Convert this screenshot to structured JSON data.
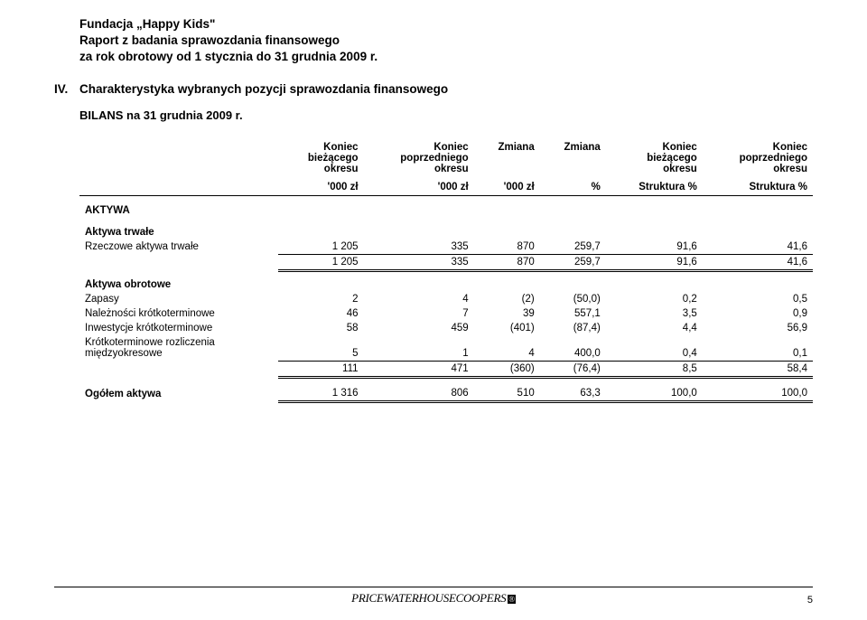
{
  "header": {
    "org": "Fundacja „Happy Kids\"",
    "line2": "Raport z badania sprawozdania finansowego",
    "line3": "za rok obrotowy od 1 stycznia do 31 grudnia 2009 r."
  },
  "section": {
    "roman": "IV.",
    "title": "Charakterystyka wybranych pozycji sprawozdania finansowego",
    "subhead": "BILANS na 31 grudnia 2009 r."
  },
  "table": {
    "col_headers": [
      "Koniec bieżącego okresu",
      "Koniec poprzedniego okresu",
      "Zmiana",
      "Zmiana",
      "Koniec bieżącego okresu",
      "Koniec poprzedniego okresu"
    ],
    "unit_headers": [
      "'000 zł",
      "'000 zł",
      "'000 zł",
      "%",
      "Struktura %",
      "Struktura %"
    ],
    "aktywa_label": "AKTYWA",
    "aktywa_trwale_label": "Aktywa trwałe",
    "rows_trwale": [
      {
        "label": "Rzeczowe aktywa trwałe",
        "v": [
          "1 205",
          "335",
          "870",
          "259,7",
          "91,6",
          "41,6"
        ]
      }
    ],
    "sum_trwale": {
      "v": [
        "1 205",
        "335",
        "870",
        "259,7",
        "91,6",
        "41,6"
      ]
    },
    "aktywa_obrotowe_label": "Aktywa obrotowe",
    "rows_obrotowe": [
      {
        "label": "Zapasy",
        "v": [
          "2",
          "4",
          "(2)",
          "(50,0)",
          "0,2",
          "0,5"
        ]
      },
      {
        "label": "Należności krótkoterminowe",
        "v": [
          "46",
          "7",
          "39",
          "557,1",
          "3,5",
          "0,9"
        ]
      },
      {
        "label": "Inwestycje krótkoterminowe",
        "v": [
          "58",
          "459",
          "(401)",
          "(87,4)",
          "4,4",
          "56,9"
        ]
      },
      {
        "label": "Krótkoterminowe rozliczenia międzyokresowe",
        "v": [
          "5",
          "1",
          "4",
          "400,0",
          "0,4",
          "0,1"
        ]
      }
    ],
    "sum_obrotowe": {
      "v": [
        "111",
        "471",
        "(360)",
        "(76,4)",
        "8,5",
        "58,4"
      ]
    },
    "total": {
      "label": "Ogółem aktywa",
      "v": [
        "1 316",
        "806",
        "510",
        "63,3",
        "100,0",
        "100,0"
      ]
    }
  },
  "footer": {
    "logo_left": "P",
    "logo_mid": "RICEWATERHOUSE",
    "logo_right": "COOPERS",
    "mark": "®",
    "page": "5"
  }
}
